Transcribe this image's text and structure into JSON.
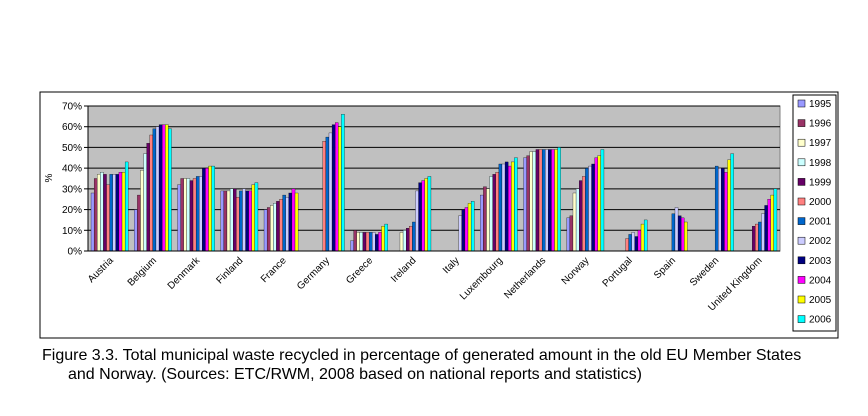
{
  "chart_data": {
    "type": "bar",
    "caption": "Figure 3.3. Total municipal waste recycled in percentage of generated amount in the old EU Member States and Norway. (Sources: ETC/RWM, 2008 based on national reports and statistics)",
    "y_label": "%",
    "categories": [
      "Austria",
      "Belgium",
      "Denmark",
      "Finland",
      "France",
      "Germany",
      "Greece",
      "Ireland",
      "Italy",
      "Luxembourg",
      "Netherlands",
      "Norway",
      "Portugal",
      "Spain",
      "Sweden",
      "United Kingdom"
    ],
    "ylim": [
      0,
      70
    ],
    "yticks": [
      {
        "value": 0,
        "label": "0%"
      },
      {
        "value": 10,
        "label": "10%"
      },
      {
        "value": 20,
        "label": "20%"
      },
      {
        "value": 30,
        "label": "30%"
      },
      {
        "value": 40,
        "label": "40%"
      },
      {
        "value": 50,
        "label": "50%"
      },
      {
        "value": 60,
        "label": "60%"
      },
      {
        "value": 70,
        "label": "70%"
      }
    ],
    "grid": true,
    "legend": "right",
    "series": [
      {
        "name": "1995",
        "color": "#9999FF",
        "values": [
          28,
          20,
          32,
          29,
          20,
          null,
          5,
          null,
          null,
          27,
          45,
          16,
          null,
          null,
          null,
          null
        ]
      },
      {
        "name": "1996",
        "color": "#993366",
        "values": [
          35,
          27,
          35,
          29,
          21,
          null,
          10,
          null,
          null,
          31,
          46,
          17,
          null,
          null,
          null,
          null
        ]
      },
      {
        "name": "1997",
        "color": "#FFFFCC",
        "values": [
          37,
          39,
          35,
          29,
          22,
          null,
          9,
          9,
          null,
          30,
          48,
          28,
          null,
          null,
          null,
          null
        ]
      },
      {
        "name": "1998",
        "color": "#CCFFFF",
        "values": [
          38,
          47,
          35,
          30,
          23,
          null,
          9,
          10,
          null,
          36,
          48,
          30,
          null,
          null,
          null,
          null
        ]
      },
      {
        "name": "1999",
        "color": "#660066",
        "values": [
          37,
          52,
          34,
          30,
          24,
          null,
          9,
          11,
          null,
          37,
          49,
          34,
          null,
          null,
          null,
          12
        ]
      },
      {
        "name": "2000",
        "color": "#FF8080",
        "values": [
          32,
          56,
          35,
          26,
          25,
          53,
          9,
          12,
          null,
          38,
          49,
          36,
          6,
          null,
          null,
          13
        ]
      },
      {
        "name": "2001",
        "color": "#0066CC",
        "values": [
          37,
          59,
          36,
          29,
          27,
          55,
          9,
          14,
          null,
          42,
          49,
          40,
          8,
          18,
          41,
          14
        ]
      },
      {
        "name": "2002",
        "color": "#CCCCFF",
        "values": [
          37,
          60,
          36,
          30,
          26,
          57,
          9,
          29,
          17,
          42,
          49,
          41,
          9,
          21,
          40,
          18
        ]
      },
      {
        "name": "2003",
        "color": "#000080",
        "values": [
          37,
          61,
          40,
          29,
          28,
          61,
          8,
          33,
          20,
          43,
          49,
          42,
          7,
          17,
          40,
          22
        ]
      },
      {
        "name": "2004",
        "color": "#FF00FF",
        "values": [
          38,
          61,
          40,
          29,
          30,
          62,
          9,
          34,
          21,
          41,
          49,
          45,
          10,
          16,
          38,
          25
        ]
      },
      {
        "name": "2005",
        "color": "#FFFF00",
        "values": [
          38,
          61,
          41,
          32,
          28,
          60,
          12,
          35,
          23,
          43,
          49,
          46,
          13,
          14,
          44,
          27
        ]
      },
      {
        "name": "2006",
        "color": "#00FFFF",
        "values": [
          43,
          59,
          41,
          33,
          null,
          66,
          13,
          36,
          24,
          45,
          50,
          49,
          15,
          null,
          47,
          30
        ]
      }
    ]
  }
}
